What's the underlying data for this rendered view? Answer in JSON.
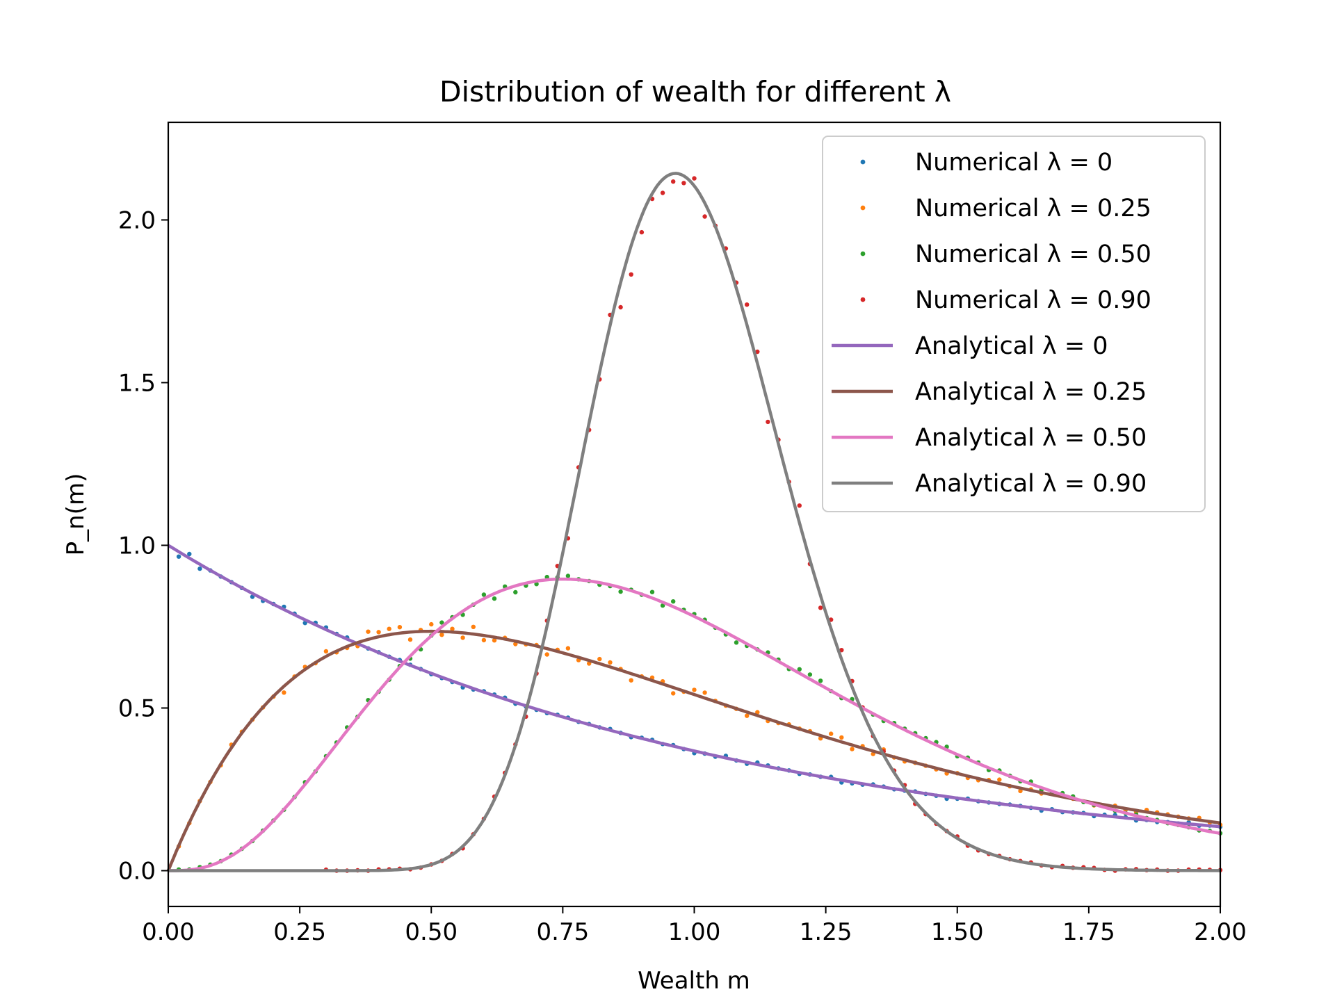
{
  "chart_data": {
    "type": "line",
    "title": "Distribution of wealth for different λ",
    "xlabel": "Wealth m",
    "ylabel": "P_n(m)",
    "xlim": [
      0.0,
      2.0
    ],
    "ylim": [
      -0.11,
      2.3
    ],
    "xticks": [
      0.0,
      0.25,
      0.5,
      0.75,
      1.0,
      1.25,
      1.5,
      1.75,
      2.0
    ],
    "xtick_labels": [
      "0.00",
      "0.25",
      "0.50",
      "0.75",
      "1.00",
      "1.25",
      "1.50",
      "1.75",
      "2.00"
    ],
    "yticks": [
      0.0,
      0.5,
      1.0,
      1.5,
      2.0
    ],
    "ytick_labels": [
      "0.0",
      "0.5",
      "1.0",
      "1.5",
      "2.0"
    ],
    "grid": false,
    "legend_position": "top-right",
    "numerical_step": 0.02,
    "series": [
      {
        "name": "Numerical λ = 0",
        "kind": "points",
        "lambda": 0,
        "color": "#1f77b4"
      },
      {
        "name": "Numerical λ = 0.25",
        "kind": "points",
        "lambda": 0.25,
        "color": "#ff7f0e"
      },
      {
        "name": "Numerical λ = 0.50",
        "kind": "points",
        "lambda": 0.5,
        "color": "#2ca02c"
      },
      {
        "name": "Numerical λ = 0.90",
        "kind": "points",
        "lambda": 0.9,
        "color": "#d62728"
      },
      {
        "name": "Analytical λ = 0",
        "kind": "line",
        "lambda": 0,
        "color": "#9467bd"
      },
      {
        "name": "Analytical λ = 0.25",
        "kind": "line",
        "lambda": 0.25,
        "color": "#8c564b"
      },
      {
        "name": "Analytical λ = 0.50",
        "kind": "line",
        "lambda": 0.5,
        "color": "#e377c2"
      },
      {
        "name": "Analytical λ = 0.90",
        "kind": "line",
        "lambda": 0.9,
        "color": "#7f7f7f"
      }
    ]
  }
}
